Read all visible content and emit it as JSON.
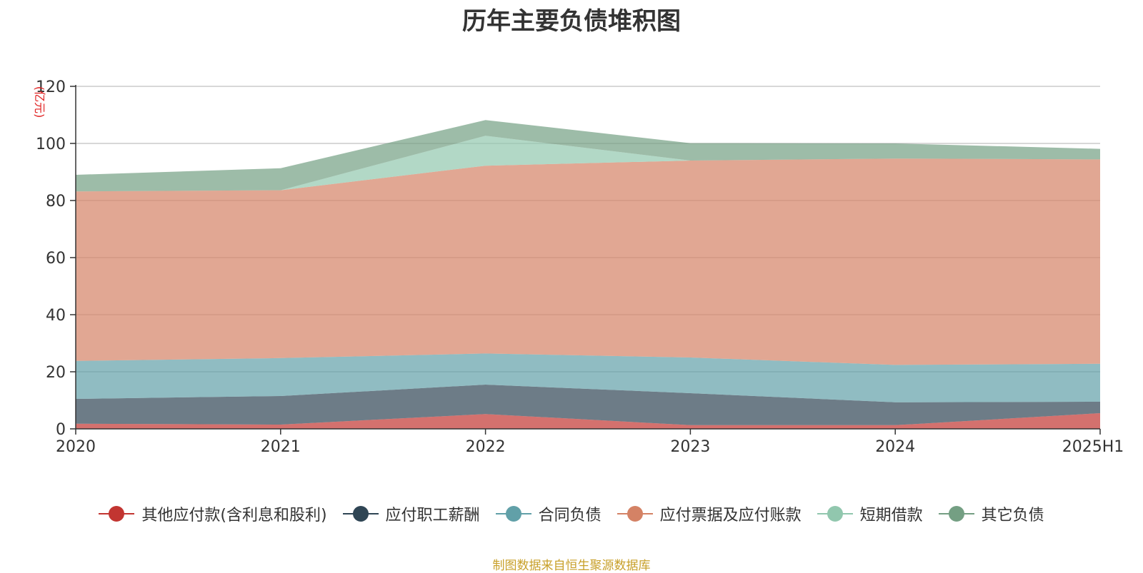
{
  "chart_data": {
    "type": "area",
    "stacked": true,
    "title": "历年主要负债堆积图",
    "ylabel": "(亿元)",
    "categories": [
      "2020",
      "2021",
      "2022",
      "2023",
      "2024",
      "2025H1"
    ],
    "ylim": [
      0,
      120
    ],
    "yticks": [
      0,
      20,
      40,
      60,
      80,
      100,
      120
    ],
    "grid": true,
    "legend_position": "bottom",
    "series": [
      {
        "name": "其他应付款(含利息和股利)",
        "color": "#c23531",
        "values": [
          1.8,
          1.5,
          5.2,
          1.3,
          1.3,
          5.5
        ]
      },
      {
        "name": "应付职工薪酬",
        "color": "#2f4554",
        "values": [
          8.7,
          10.0,
          10.3,
          11.2,
          8.0,
          4.0
        ]
      },
      {
        "name": "合同负债",
        "color": "#61a0a8",
        "values": [
          13.3,
          13.3,
          10.9,
          12.5,
          13.1,
          13.3
        ]
      },
      {
        "name": "应付票据及应付账款",
        "color": "#d48265",
        "values": [
          59.4,
          58.8,
          65.8,
          69.0,
          72.3,
          71.6
        ]
      },
      {
        "name": "短期借款",
        "color": "#91c7ae",
        "values": [
          0.0,
          0.0,
          10.5,
          0.0,
          0.0,
          0.0
        ]
      },
      {
        "name": "其它负债",
        "color": "#749f83",
        "values": [
          5.8,
          7.7,
          5.5,
          6.1,
          5.3,
          3.7
        ]
      }
    ]
  },
  "source_note": "制图数据来自恒生聚源数据库"
}
